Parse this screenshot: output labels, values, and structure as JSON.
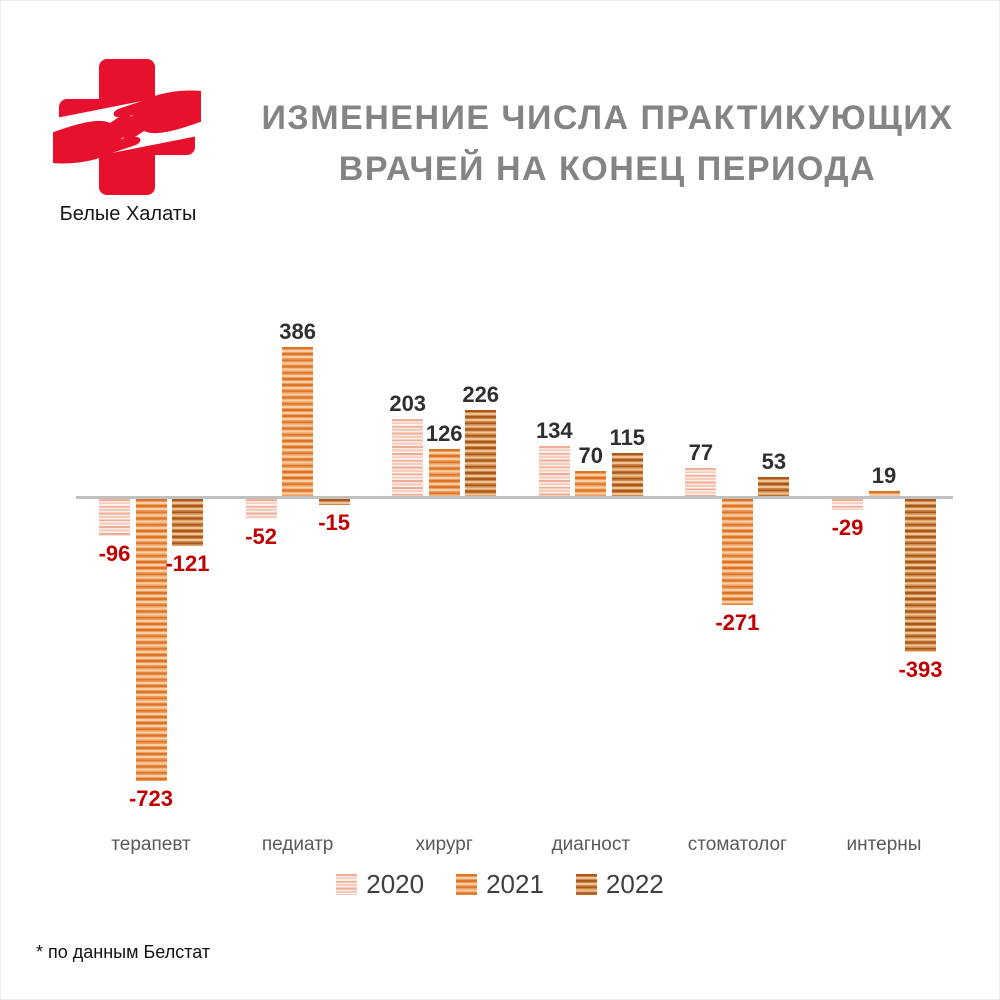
{
  "brand": {
    "logo_label": "Белые Халаты",
    "logo_icon": "red-cross-with-hands-icon",
    "logo_color": "#e8112d"
  },
  "title": {
    "line1": "ИЗМЕНЕНИЕ ЧИСЛА ПРАКТИКУЮЩИХ",
    "line2": "ВРАЧЕЙ НА КОНЕЦ ПЕРИОДА",
    "color": "#848484"
  },
  "footnote": "* по данным Белстат",
  "colors": {
    "axis_line": "#c0c0c0",
    "positive_value_label": "#2f2f2f",
    "negative_value_label": "#c00000",
    "category_label": "#595959",
    "series_2020_base": "#f2c0ae",
    "series_2021_base": "#e8883c",
    "series_2022_base": "#b96a2e"
  },
  "chart_data": {
    "type": "bar",
    "title": "ИЗМЕНЕНИЕ ЧИСЛА ПРАКТИКУЮЩИХ ВРАЧЕЙ НА КОНЕЦ ПЕРИОДА",
    "categories": [
      "терапевт",
      "педиатр",
      "хирург",
      "диагност",
      "стоматолог",
      "интерны"
    ],
    "series": [
      {
        "name": "2020",
        "color": "#f2c0ae",
        "values": [
          -96,
          -52,
          203,
          134,
          77,
          -29
        ]
      },
      {
        "name": "2021",
        "color": "#e8883c",
        "values": [
          -723,
          386,
          126,
          70,
          -271,
          19
        ]
      },
      {
        "name": "2022",
        "color": "#b96a2e",
        "values": [
          -121,
          -15,
          226,
          115,
          53,
          -393
        ]
      }
    ],
    "xlabel": "",
    "ylabel": "",
    "ylim": [
      -800,
      450
    ],
    "grid": false,
    "value_labels": true,
    "negative_labels_red": true,
    "legend_position": "bottom",
    "pattern_fill": "horizontal-stripes"
  }
}
